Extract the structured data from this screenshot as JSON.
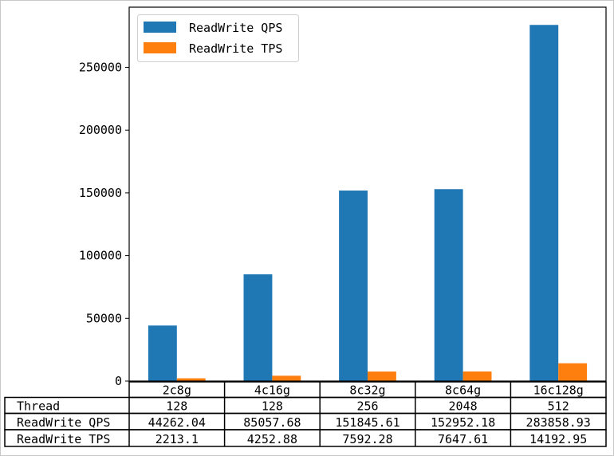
{
  "chart_data": {
    "type": "bar",
    "categories": [
      "2c8g",
      "4c16g",
      "8c32g",
      "8c64g",
      "16c128g"
    ],
    "series": [
      {
        "name": "ReadWrite QPS",
        "color": "#1f77b4",
        "values": [
          44262.04,
          85057.68,
          151845.61,
          152952.18,
          283858.93
        ]
      },
      {
        "name": "ReadWrite TPS",
        "color": "#ff7f0e",
        "values": [
          2213.1,
          4252.88,
          7592.28,
          7647.61,
          14192.95
        ]
      }
    ],
    "ylim": [
      0,
      298000
    ],
    "yticks": [
      0,
      50000,
      100000,
      150000,
      200000,
      250000
    ],
    "legend": "top-left",
    "table": {
      "rows": [
        {
          "label": "Thread",
          "cells": [
            "128",
            "128",
            "256",
            "2048",
            "512"
          ]
        },
        {
          "label": "ReadWrite QPS",
          "cells": [
            "44262.04",
            "85057.68",
            "151845.61",
            "152952.18",
            "283858.93"
          ]
        },
        {
          "label": "ReadWrite TPS",
          "cells": [
            "2213.1",
            "4252.88",
            "7592.28",
            "7647.61",
            "14192.95"
          ]
        }
      ]
    }
  }
}
